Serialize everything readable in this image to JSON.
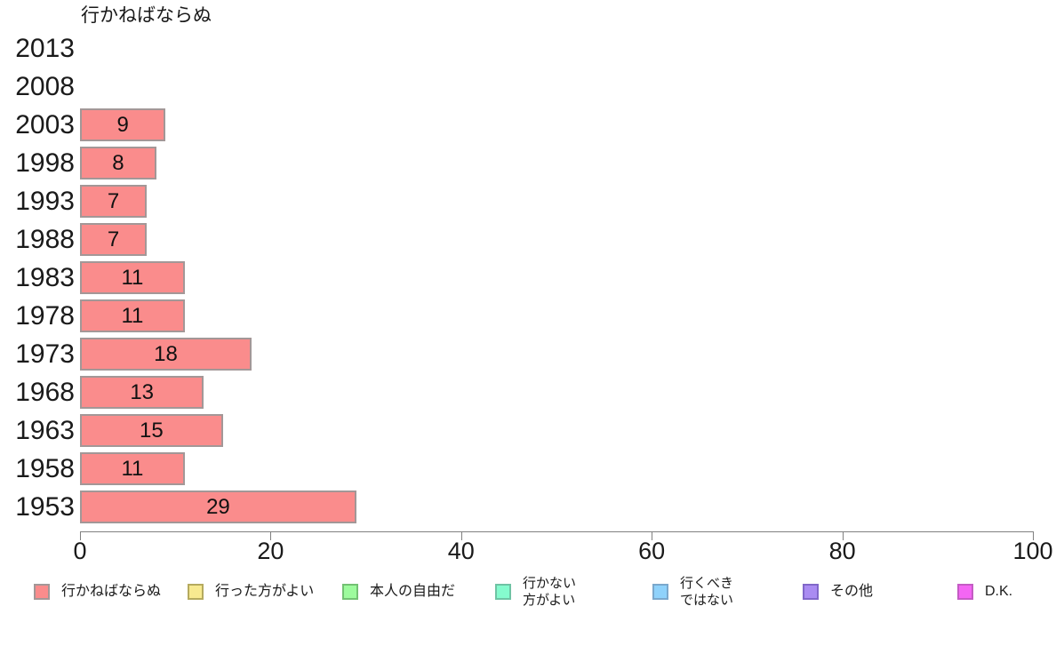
{
  "chart_data": {
    "type": "bar",
    "orientation": "horizontal",
    "title": "行かねばならぬ",
    "categories": [
      "2013",
      "2008",
      "2003",
      "1998",
      "1993",
      "1988",
      "1983",
      "1978",
      "1973",
      "1968",
      "1963",
      "1958",
      "1953"
    ],
    "values": [
      null,
      null,
      9,
      8,
      7,
      7,
      11,
      11,
      18,
      13,
      15,
      11,
      29
    ],
    "value_labels": [
      "",
      "",
      "9",
      "8",
      "7",
      "7",
      "11",
      "11",
      "18",
      "13",
      "15",
      "11",
      "29"
    ],
    "xlabel": "",
    "ylabel": "",
    "xlim": [
      0,
      100
    ],
    "x_ticks": [
      "0",
      "20",
      "40",
      "60",
      "80",
      "100"
    ],
    "grid": false,
    "legend_position": "bottom",
    "bar_color": "#FA8C8C",
    "bar_border_color": "#A39797",
    "axis_color": "#808080",
    "legend": [
      {
        "lines": [
          "行かねばならぬ"
        ],
        "label": "行かねばならぬ",
        "color": "#FA8C8C",
        "border": "#A39797"
      },
      {
        "lines": [
          "行った方がよい"
        ],
        "label": "行った方がよい",
        "color": "#F8EA90",
        "border": "#B5AA5E"
      },
      {
        "lines": [
          "本人の自由だ"
        ],
        "label": "本人の自由だ",
        "color": "#9DFB9D",
        "border": "#73C173"
      },
      {
        "lines": [
          "行かない",
          "方がよい"
        ],
        "label": "行かない方がよい",
        "color": "#85FBCE",
        "border": "#6FC3A4"
      },
      {
        "lines": [
          "行くべき",
          "ではない"
        ],
        "label": "行くべきではない",
        "color": "#8FD2FB",
        "border": "#7BA8CC"
      },
      {
        "lines": [
          "その他"
        ],
        "label": "その他",
        "color": "#AA8CF2",
        "border": "#8168C9"
      },
      {
        "lines": [
          "D.K."
        ],
        "label": "D.K.",
        "color": "#F466F4",
        "border": "#C45CC4"
      }
    ]
  }
}
